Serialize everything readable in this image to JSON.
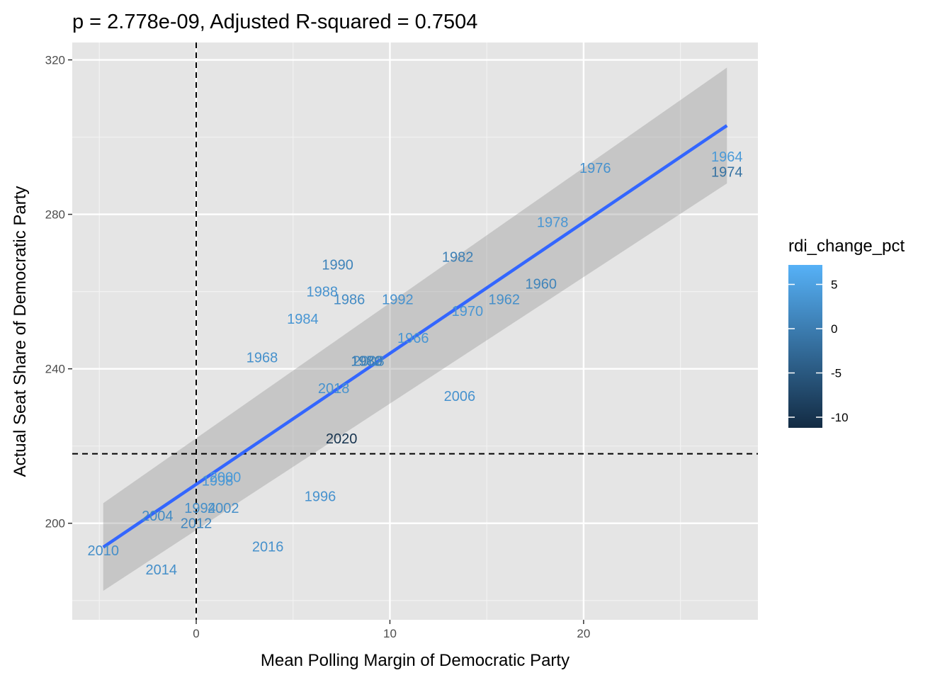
{
  "chart_data": {
    "type": "scatter",
    "title": "p = 2.778e-09, Adjusted R-squared = 0.7504",
    "xlabel": "Mean Polling Margin of Democratic Party",
    "ylabel": "Actual Seat Share of Democratic Party",
    "xlim": [
      -6.4,
      29.0
    ],
    "ylim": [
      175.0,
      324.5
    ],
    "x_ticks": [
      0,
      10,
      20
    ],
    "y_ticks": [
      200,
      240,
      280,
      320
    ],
    "grid": true,
    "reference_lines": {
      "vertical_x": 0,
      "horizontal_y": 218
    },
    "regression": {
      "x": [
        -4.8,
        27.4
      ],
      "y": [
        193.8,
        303.0
      ],
      "ci_lower": [
        182.5,
        288.0
      ],
      "ci_upper": [
        205.2,
        318.0
      ]
    },
    "points": [
      {
        "label": "1960",
        "x": 17.8,
        "y": 262,
        "rdi": 1.0
      },
      {
        "label": "1962",
        "x": 15.9,
        "y": 258,
        "rdi": 2.5
      },
      {
        "label": "1964",
        "x": 27.4,
        "y": 295,
        "rdi": 4.0
      },
      {
        "label": "1966",
        "x": 11.2,
        "y": 248,
        "rdi": 3.5
      },
      {
        "label": "1968",
        "x": 3.4,
        "y": 243,
        "rdi": 2.8
      },
      {
        "label": "1970",
        "x": 14.0,
        "y": 255,
        "rdi": 3.5
      },
      {
        "label": "1972",
        "x": 8.8,
        "y": 242,
        "rdi": 3.0
      },
      {
        "label": "1974",
        "x": 27.4,
        "y": 291,
        "rdi": -1.5
      },
      {
        "label": "1976",
        "x": 20.6,
        "y": 292,
        "rdi": 3.0
      },
      {
        "label": "1978",
        "x": 18.4,
        "y": 278,
        "rdi": 3.5
      },
      {
        "label": "1980",
        "x": 8.8,
        "y": 242,
        "rdi": -0.5
      },
      {
        "label": "1982",
        "x": 13.5,
        "y": 269,
        "rdi": 0.5
      },
      {
        "label": "1984",
        "x": 5.5,
        "y": 253,
        "rdi": 3.5
      },
      {
        "label": "1986",
        "x": 7.9,
        "y": 258,
        "rdi": 2.0
      },
      {
        "label": "1988",
        "x": 6.5,
        "y": 260,
        "rdi": 3.0
      },
      {
        "label": "1990",
        "x": 7.3,
        "y": 267,
        "rdi": 1.0
      },
      {
        "label": "1992",
        "x": 10.4,
        "y": 258,
        "rdi": 3.0
      },
      {
        "label": "1994",
        "x": 0.2,
        "y": 204,
        "rdi": 2.5
      },
      {
        "label": "1996",
        "x": 6.4,
        "y": 207,
        "rdi": 3.0
      },
      {
        "label": "1998",
        "x": 1.1,
        "y": 211,
        "rdi": 3.5
      },
      {
        "label": "2000",
        "x": 1.5,
        "y": 212,
        "rdi": 4.0
      },
      {
        "label": "2002",
        "x": 1.4,
        "y": 204,
        "rdi": 2.5
      },
      {
        "label": "2004",
        "x": -2.0,
        "y": 202,
        "rdi": 2.0
      },
      {
        "label": "2006",
        "x": 13.6,
        "y": 233,
        "rdi": 3.0
      },
      {
        "label": "2008",
        "x": 8.9,
        "y": 242,
        "rdi": 1.5
      },
      {
        "label": "2010",
        "x": -4.8,
        "y": 193,
        "rdi": 2.5
      },
      {
        "label": "2012",
        "x": 0.0,
        "y": 200,
        "rdi": 1.5
      },
      {
        "label": "2014",
        "x": -1.8,
        "y": 188,
        "rdi": 2.5
      },
      {
        "label": "2016",
        "x": 3.7,
        "y": 194,
        "rdi": 2.8
      },
      {
        "label": "2018",
        "x": 7.1,
        "y": 235,
        "rdi": 3.0
      },
      {
        "label": "2020",
        "x": 7.5,
        "y": 222,
        "rdi": -10.0
      }
    ],
    "legend": {
      "title": "rdi_change_pct",
      "placement": "right",
      "range": [
        -11.2,
        7.2
      ],
      "ticks": [
        5,
        0,
        -5,
        -10
      ],
      "tick_labels": [
        "5",
        "0",
        "-5",
        "-10"
      ],
      "color_low": "#132b43",
      "color_high": "#56b1f7"
    }
  }
}
